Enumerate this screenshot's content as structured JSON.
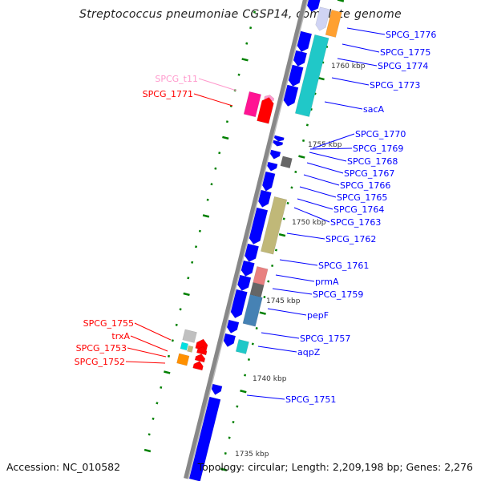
{
  "title": "Streptococcus pneumoniae CGSP14, complete genome",
  "footer": {
    "accession": "Accession: NC_010582",
    "summary": "Topology: circular; Length: 2,209,198 bp; Genes: 2,276"
  },
  "ticks": [
    "1760 kbp",
    "1755 kbp",
    "1750 kbp",
    "1745 kbp",
    "1740 kbp",
    "1735 kbp"
  ],
  "forward_labels": [
    "SPCG_1776",
    "SPCG_1775",
    "SPCG_1774",
    "SPCG_1773",
    "sacA",
    "SPCG_1770",
    "SPCG_1769",
    "SPCG_1768",
    "SPCG_1767",
    "SPCG_1766",
    "SPCG_1765",
    "SPCG_1764",
    "SPCG_1763",
    "SPCG_1762",
    "SPCG_1761",
    "prmA",
    "SPCG_1759",
    "pepF",
    "SPCG_1757",
    "aqpZ",
    "SPCG_1751"
  ],
  "reverse_labels": [
    "SPCG_t11",
    "SPCG_1771",
    "SPCG_1755",
    "trxA",
    "SPCG_1753",
    "SPCG_1752"
  ],
  "colors": {
    "forward": "#0000ff",
    "reverse": "#ff0000",
    "trna": "#ff99cc",
    "tick": "#008000",
    "backbone": "#888888"
  }
}
